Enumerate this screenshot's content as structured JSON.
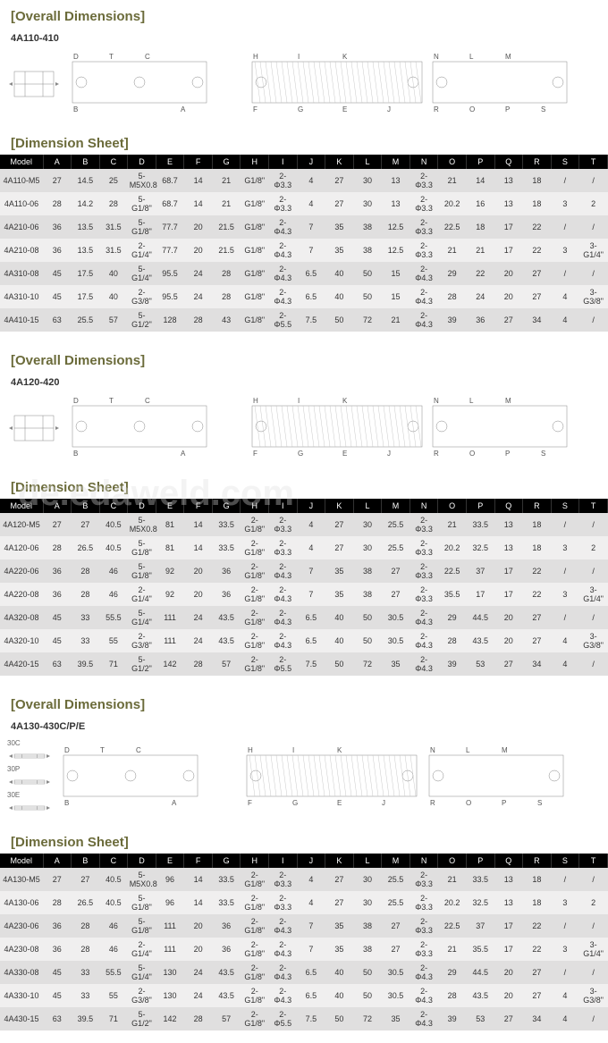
{
  "sections": [
    {
      "overall_title": "Overall Dimensions",
      "model_range": "4A110-410",
      "diagram_labels": {
        "view1": [
          "D",
          "T",
          "C",
          "A",
          "B"
        ],
        "view2": [
          "H",
          "I",
          "K",
          "J",
          "F",
          "G",
          "E"
        ],
        "view3": [
          "N",
          "L",
          "M",
          "S",
          "R",
          "O",
          "P"
        ]
      },
      "sheet_title": "Dimension Sheet",
      "columns": [
        "Model",
        "A",
        "B",
        "C",
        "D",
        "E",
        "F",
        "G",
        "H",
        "I",
        "J",
        "K",
        "L",
        "M",
        "N",
        "O",
        "P",
        "Q",
        "R",
        "S",
        "T"
      ],
      "rows": [
        [
          "4A110-M5",
          "27",
          "14.5",
          "25",
          "5-M5X0.8",
          "68.7",
          "14",
          "21",
          "G1/8\"",
          "2-Φ3.3",
          "4",
          "27",
          "30",
          "13",
          "2-Φ3.3",
          "21",
          "14",
          "13",
          "18",
          "/",
          "/"
        ],
        [
          "4A110-06",
          "28",
          "14.2",
          "28",
          "5-G1/8\"",
          "68.7",
          "14",
          "21",
          "G1/8\"",
          "2-Φ3.3",
          "4",
          "27",
          "30",
          "13",
          "2-Φ3.3",
          "20.2",
          "16",
          "13",
          "18",
          "3",
          "2"
        ],
        [
          "4A210-06",
          "36",
          "13.5",
          "31.5",
          "5-G1/8\"",
          "77.7",
          "20",
          "21.5",
          "G1/8\"",
          "2-Φ4.3",
          "7",
          "35",
          "38",
          "12.5",
          "2-Φ3.3",
          "22.5",
          "18",
          "17",
          "22",
          "/",
          "/"
        ],
        [
          "4A210-08",
          "36",
          "13.5",
          "31.5",
          "2-G1/4\"",
          "77.7",
          "20",
          "21.5",
          "G1/8\"",
          "2-Φ4.3",
          "7",
          "35",
          "38",
          "12.5",
          "2-Φ3.3",
          "21",
          "21",
          "17",
          "22",
          "3",
          "3-G1/4\""
        ],
        [
          "4A310-08",
          "45",
          "17.5",
          "40",
          "5-G1/4\"",
          "95.5",
          "24",
          "28",
          "G1/8\"",
          "2-Φ4.3",
          "6.5",
          "40",
          "50",
          "15",
          "2-Φ4.3",
          "29",
          "22",
          "20",
          "27",
          "/",
          "/"
        ],
        [
          "4A310-10",
          "45",
          "17.5",
          "40",
          "2-G3/8\"",
          "95.5",
          "24",
          "28",
          "G1/8\"",
          "2-Φ4.3",
          "6.5",
          "40",
          "50",
          "15",
          "2-Φ4.3",
          "28",
          "24",
          "20",
          "27",
          "4",
          "3-G3/8\""
        ],
        [
          "4A410-15",
          "63",
          "25.5",
          "57",
          "5-G1/2\"",
          "128",
          "28",
          "43",
          "G1/8\"",
          "2-Φ5.5",
          "7.5",
          "50",
          "72",
          "21",
          "2-Φ4.3",
          "39",
          "36",
          "27",
          "34",
          "4",
          "/"
        ]
      ]
    },
    {
      "overall_title": "Overall Dimensions",
      "model_range": "4A120-420",
      "diagram_labels": {
        "view1": [
          "D",
          "T",
          "C",
          "A",
          "B"
        ],
        "view2": [
          "H",
          "I",
          "K",
          "J",
          "F",
          "G",
          "E"
        ],
        "view3": [
          "N",
          "L",
          "M",
          "S",
          "R",
          "O",
          "P"
        ]
      },
      "sheet_title": "Dimension Sheet",
      "columns": [
        "Model",
        "A",
        "B",
        "C",
        "D",
        "E",
        "F",
        "G",
        "H",
        "I",
        "J",
        "K",
        "L",
        "M",
        "N",
        "O",
        "P",
        "Q",
        "R",
        "S",
        "T"
      ],
      "rows": [
        [
          "4A120-M5",
          "27",
          "27",
          "40.5",
          "5-M5X0.8",
          "81",
          "14",
          "33.5",
          "2-G1/8\"",
          "2-Φ3.3",
          "4",
          "27",
          "30",
          "25.5",
          "2-Φ3.3",
          "21",
          "33.5",
          "13",
          "18",
          "/",
          "/"
        ],
        [
          "4A120-06",
          "28",
          "26.5",
          "40.5",
          "5-G1/8\"",
          "81",
          "14",
          "33.5",
          "2-G1/8\"",
          "2-Φ3.3",
          "4",
          "27",
          "30",
          "25.5",
          "2-Φ3.3",
          "20.2",
          "32.5",
          "13",
          "18",
          "3",
          "2"
        ],
        [
          "4A220-06",
          "36",
          "28",
          "46",
          "5-G1/8\"",
          "92",
          "20",
          "36",
          "2-G1/8\"",
          "2-Φ4.3",
          "7",
          "35",
          "38",
          "27",
          "2-Φ3.3",
          "22.5",
          "37",
          "17",
          "22",
          "/",
          "/"
        ],
        [
          "4A220-08",
          "36",
          "28",
          "46",
          "2-G1/4\"",
          "92",
          "20",
          "36",
          "2-G1/8\"",
          "2-Φ4.3",
          "7",
          "35",
          "38",
          "27",
          "2-Φ3.3",
          "35.5",
          "17",
          "17",
          "22",
          "3",
          "3-G1/4\""
        ],
        [
          "4A320-08",
          "45",
          "33",
          "55.5",
          "5-G1/4\"",
          "111",
          "24",
          "43.5",
          "2-G1/8\"",
          "2-Φ4.3",
          "6.5",
          "40",
          "50",
          "30.5",
          "2-Φ4.3",
          "29",
          "44.5",
          "20",
          "27",
          "/",
          "/"
        ],
        [
          "4A320-10",
          "45",
          "33",
          "55",
          "2-G3/8\"",
          "111",
          "24",
          "43.5",
          "2-G1/8\"",
          "2-Φ4.3",
          "6.5",
          "40",
          "50",
          "30.5",
          "2-Φ4.3",
          "28",
          "43.5",
          "20",
          "27",
          "4",
          "3-G3/8\""
        ],
        [
          "4A420-15",
          "63",
          "39.5",
          "71",
          "5-G1/2\"",
          "142",
          "28",
          "57",
          "2- G1/8\"",
          "2-Φ5.5",
          "7.5",
          "50",
          "72",
          "35",
          "2-Φ4.3",
          "39",
          "53",
          "27",
          "34",
          "4",
          "/"
        ]
      ]
    },
    {
      "overall_title": "Overall Dimensions",
      "model_range": "4A130-430C/P/E",
      "schematic_labels": [
        "30C",
        "30P",
        "30E"
      ],
      "diagram_labels": {
        "view1": [
          "D",
          "T",
          "C",
          "A",
          "B"
        ],
        "view2": [
          "H",
          "I",
          "K",
          "J",
          "F",
          "G",
          "E"
        ],
        "view3": [
          "N",
          "L",
          "M",
          "S",
          "R",
          "O",
          "P"
        ]
      },
      "sheet_title": "Dimension Sheet",
      "columns": [
        "Model",
        "A",
        "B",
        "C",
        "D",
        "E",
        "F",
        "G",
        "H",
        "I",
        "J",
        "K",
        "L",
        "M",
        "N",
        "O",
        "P",
        "Q",
        "R",
        "S",
        "T"
      ],
      "rows": [
        [
          "4A130-M5",
          "27",
          "27",
          "40.5",
          "5-M5X0.8",
          "96",
          "14",
          "33.5",
          "2-G1/8\"",
          "2-Φ3.3",
          "4",
          "27",
          "30",
          "25.5",
          "2-Φ3.3",
          "21",
          "33.5",
          "13",
          "18",
          "/",
          "/"
        ],
        [
          "4A130-06",
          "28",
          "26.5",
          "40.5",
          "5-G1/8\"",
          "96",
          "14",
          "33.5",
          "2-G1/8\"",
          "2-Φ3.3",
          "4",
          "27",
          "30",
          "25.5",
          "2-Φ3.3",
          "20.2",
          "32.5",
          "13",
          "18",
          "3",
          "2"
        ],
        [
          "4A230-06",
          "36",
          "28",
          "46",
          "5-G1/8\"",
          "111",
          "20",
          "36",
          "2-G1/8\"",
          "2-Φ4.3",
          "7",
          "35",
          "38",
          "27",
          "2-Φ3.3",
          "22.5",
          "37",
          "17",
          "22",
          "/",
          "/"
        ],
        [
          "4A230-08",
          "36",
          "28",
          "46",
          "2-G1/4\"",
          "111",
          "20",
          "36",
          "2-G1/8\"",
          "2-Φ4.3",
          "7",
          "35",
          "38",
          "27",
          "2-Φ3.3",
          "21",
          "35.5",
          "17",
          "22",
          "3",
          "3-G1/4\""
        ],
        [
          "4A330-08",
          "45",
          "33",
          "55.5",
          "5-G1/4\"",
          "130",
          "24",
          "43.5",
          "2-G1/8\"",
          "2-Φ4.3",
          "6.5",
          "40",
          "50",
          "30.5",
          "2-Φ4.3",
          "29",
          "44.5",
          "20",
          "27",
          "/",
          "/"
        ],
        [
          "4A330-10",
          "45",
          "33",
          "55",
          "2-G3/8\"",
          "130",
          "24",
          "43.5",
          "2-G1/8\"",
          "2-Φ4.3",
          "6.5",
          "40",
          "50",
          "30.5",
          "2-Φ4.3",
          "28",
          "43.5",
          "20",
          "27",
          "4",
          "3-G3/8\""
        ],
        [
          "4A430-15",
          "63",
          "39.5",
          "71",
          "5-G1/2\"",
          "142",
          "28",
          "57",
          "2-G1/8\"",
          "2-Φ5.5",
          "7.5",
          "50",
          "72",
          "35",
          "2-Φ4.3",
          "39",
          "53",
          "27",
          "34",
          "4",
          "/"
        ]
      ]
    }
  ],
  "watermark": "de.edaweld.com",
  "colors": {
    "header_text": "#6b6b3a",
    "table_header_bg": "#000000",
    "table_header_fg": "#ffffff",
    "row_odd": "#e0dfdf",
    "row_even": "#f0efef"
  }
}
